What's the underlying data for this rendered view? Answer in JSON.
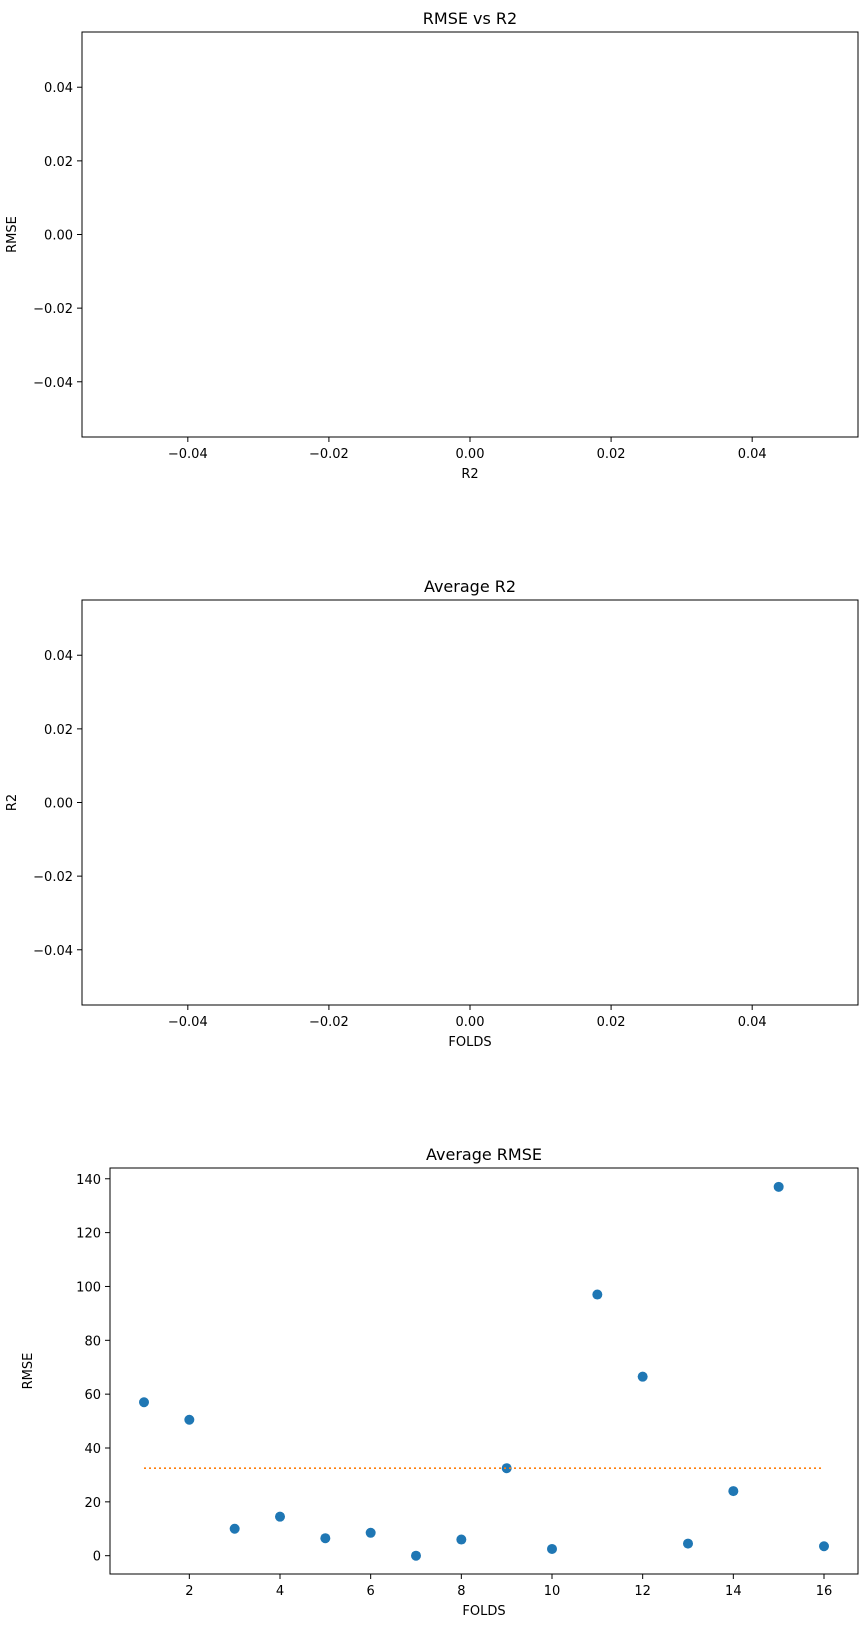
{
  "chart_data": [
    {
      "type": "scatter",
      "title": "RMSE vs R2",
      "xlabel": "R2",
      "ylabel": "RMSE",
      "xlim": [
        -0.055,
        0.055
      ],
      "ylim": [
        -0.055,
        0.055
      ],
      "xticks": [
        -0.04,
        -0.02,
        0.0,
        0.02,
        0.04
      ],
      "xtick_labels": [
        "−0.04",
        "−0.02",
        "0.00",
        "0.02",
        "0.04"
      ],
      "yticks": [
        -0.04,
        -0.02,
        0.0,
        0.02,
        0.04
      ],
      "ytick_labels": [
        "−0.04",
        "−0.02",
        "0.00",
        "0.02",
        "0.04"
      ],
      "grid": false,
      "series": []
    },
    {
      "type": "scatter",
      "title": "Average R2",
      "xlabel": "FOLDS",
      "ylabel": "R2",
      "xlim": [
        -0.055,
        0.055
      ],
      "ylim": [
        -0.055,
        0.055
      ],
      "xticks": [
        -0.04,
        -0.02,
        0.0,
        0.02,
        0.04
      ],
      "xtick_labels": [
        "−0.04",
        "−0.02",
        "0.00",
        "0.02",
        "0.04"
      ],
      "yticks": [
        -0.04,
        -0.02,
        0.0,
        0.02,
        0.04
      ],
      "ytick_labels": [
        "−0.04",
        "−0.02",
        "0.00",
        "0.02",
        "0.04"
      ],
      "grid": false,
      "series": []
    },
    {
      "type": "scatter",
      "title": "Average RMSE",
      "xlabel": "FOLDS",
      "ylabel": "RMSE",
      "xlim": [
        0.25,
        16.75
      ],
      "ylim": [
        -6.8,
        144
      ],
      "xticks": [
        2,
        4,
        6,
        8,
        10,
        12,
        14,
        16
      ],
      "xtick_labels": [
        "2",
        "4",
        "6",
        "8",
        "10",
        "12",
        "14",
        "16"
      ],
      "yticks": [
        0,
        20,
        40,
        60,
        80,
        100,
        120,
        140
      ],
      "ytick_labels": [
        "0",
        "20",
        "40",
        "60",
        "80",
        "100",
        "120",
        "140"
      ],
      "grid": false,
      "series": [
        {
          "kind": "points",
          "color": "#1f77b4",
          "x": [
            1,
            2,
            3,
            4,
            5,
            6,
            7,
            8,
            9,
            10,
            11,
            12,
            13,
            14,
            15,
            16
          ],
          "y": [
            57,
            50.5,
            10,
            14.5,
            6.5,
            8.5,
            0,
            6,
            32.5,
            2.5,
            97,
            66.5,
            4.5,
            24,
            137,
            3.5
          ]
        },
        {
          "kind": "dotted-line",
          "color": "#ff7f0e",
          "x": [
            1,
            16
          ],
          "y": [
            32.5,
            32.5
          ]
        }
      ]
    }
  ]
}
